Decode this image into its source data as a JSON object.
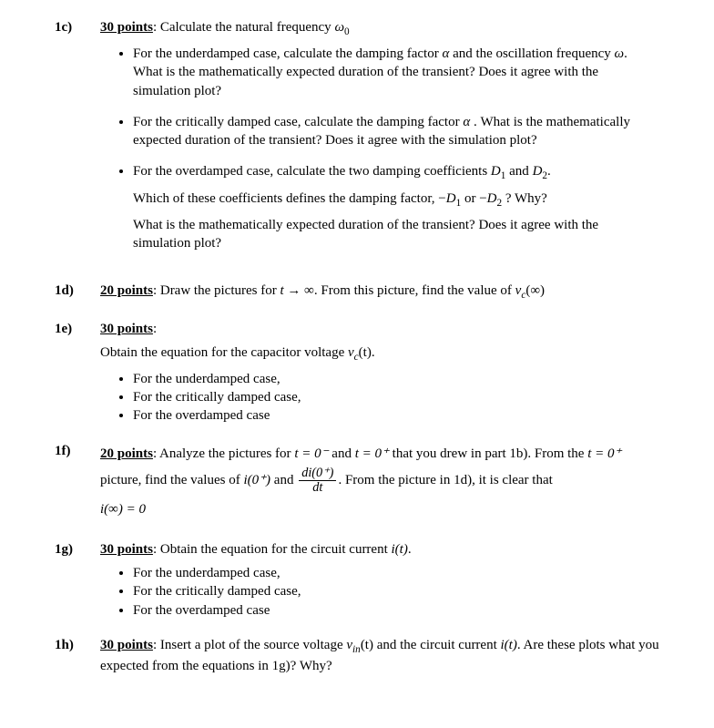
{
  "q1c": {
    "label": "1c)",
    "points": "30 points",
    "head_rest": ": Calculate the natural frequency ",
    "omega0": "ω",
    "omega0_sub": "0",
    "b1": "For the underdamped case, calculate the damping factor ",
    "alpha": "α",
    "b1_rest": " and the oscillation frequency ",
    "omega": "ω",
    "b1_rest2": ". What is the mathematically expected duration of the transient? Does it agree with the simulation plot?",
    "b2": "For the critically damped case, calculate the damping factor ",
    "b2_rest": " . What is the mathematically expected duration of the transient? Does it agree with the simulation plot?",
    "b3": "For the overdamped case, calculate the two damping coefficients ",
    "D1": "D",
    "D1_sub": "1",
    "and": " and ",
    "D2": "D",
    "D2_sub": "2",
    "dot": ".",
    "b3_line2_a": "Which of these coefficients defines the damping factor, ",
    "neg": "−",
    "or": " or ",
    "b3_line2_b": " ? Why?",
    "b3_line3": "What is the mathematically expected duration of the transient? Does it agree with the simulation plot?"
  },
  "q1d": {
    "label": "1d)",
    "points": "20 points",
    "rest_a": ": Draw the pictures for  ",
    "t_inf": "t → ∞",
    "rest_b": ". From this picture, find the value of ",
    "vc": "v",
    "vc_sub": "c",
    "arg": "(∞)"
  },
  "q1e": {
    "label": "1e)",
    "points": "30 points",
    "colon": ":",
    "line": "Obtain the equation for the capacitor voltage ",
    "vc": "v",
    "vc_sub": "c",
    "arg": "(t)",
    "dot": ".",
    "b1": "For the underdamped case,",
    "b2": "For the critically damped case,",
    "b3": "For the overdamped case"
  },
  "q1f": {
    "label": "1f)",
    "points": "20 points",
    "rest_a": ": Analyze the pictures for ",
    "t0m": "t = 0⁻",
    "and": " and ",
    "t0p": "t = 0⁺",
    "rest_b": " that you drew in part 1b). From the ",
    "rest_c": " picture, find the values of ",
    "i0p": "i(0⁺)",
    "and2": " and ",
    "frac_num": "di(0⁺)",
    "frac_den": "dt",
    "rest_d": ". From the picture in 1d), it is clear that",
    "iinf": "i(∞) = 0"
  },
  "q1g": {
    "label": "1g)",
    "points": "30 points",
    "rest": ": Obtain the equation for the circuit current ",
    "it": "i(t)",
    "dot": ".",
    "b1": "For the underdamped case,",
    "b2": "For the critically damped case,",
    "b3": "For the overdamped case"
  },
  "q1h": {
    "label": "1h)",
    "points": "30 points",
    "rest_a": ": Insert a plot of the source voltage ",
    "vin": "v",
    "vin_sub": "in",
    "arg": "(t)",
    "rest_b": " and the circuit current ",
    "it": "i(t)",
    "rest_c": ". Are these plots what you expected from the equations in 1g)? Why?"
  }
}
